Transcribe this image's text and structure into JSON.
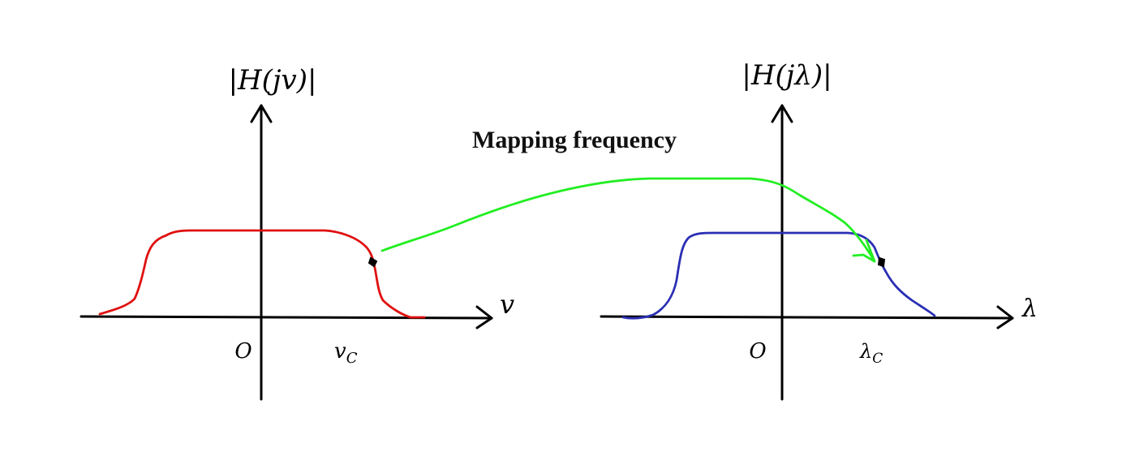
{
  "title": "Mapping frequency",
  "left_plot": {
    "y_label": "|H(jv)|",
    "x_label": "v",
    "origin_label": "O",
    "cutoff_label": "v",
    "cutoff_subscript": "C"
  },
  "right_plot": {
    "y_label": "|H(jλ)|",
    "x_label": "λ",
    "origin_label": "O",
    "cutoff_label": "λ",
    "cutoff_subscript": "C"
  },
  "colors": {
    "left_curve": "#e01010",
    "right_curve": "#2a2fb4",
    "mapping_arrow": "#22ee22",
    "axes": "#000000"
  }
}
